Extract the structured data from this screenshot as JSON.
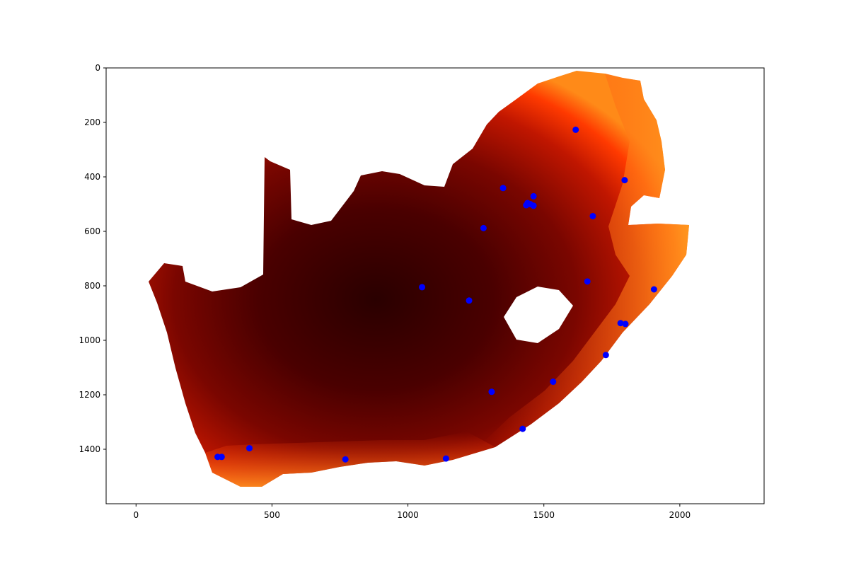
{
  "chart_data": {
    "type": "scatter",
    "title": "",
    "xlabel": "",
    "ylabel": "",
    "xlim": [
      -110,
      2310
    ],
    "ylim": [
      1600,
      0
    ],
    "y_inverted": true,
    "grid": false,
    "background": "raster heatmap of South Africa (dark red inland to orange/yellow along the coasts)",
    "x_ticks": [
      0,
      500,
      1000,
      1500,
      2000
    ],
    "y_ticks": [
      0,
      200,
      400,
      600,
      800,
      1000,
      1200,
      1400
    ],
    "point_color": "#0000ff",
    "colormap": [
      "#2a0000",
      "#5a0000",
      "#8c0a00",
      "#c81a00",
      "#ff3c00",
      "#ff7a10",
      "#ffb030"
    ],
    "series": [
      {
        "points": [
          [
            1617,
            227
          ],
          [
            1797,
            412
          ],
          [
            1350,
            441
          ],
          [
            1462,
            471
          ],
          [
            1440,
            496
          ],
          [
            1450,
            500
          ],
          [
            1435,
            504
          ],
          [
            1462,
            506
          ],
          [
            1680,
            544
          ],
          [
            1278,
            588
          ],
          [
            1052,
            805
          ],
          [
            1660,
            784
          ],
          [
            1905,
            813
          ],
          [
            1225,
            854
          ],
          [
            1782,
            937
          ],
          [
            1800,
            940
          ],
          [
            1728,
            1054
          ],
          [
            1308,
            1189
          ],
          [
            1534,
            1152
          ],
          [
            1422,
            1325
          ],
          [
            417,
            1396
          ],
          [
            300,
            1428
          ],
          [
            315,
            1428
          ],
          [
            770,
            1437
          ],
          [
            1140,
            1434
          ]
        ]
      }
    ]
  }
}
